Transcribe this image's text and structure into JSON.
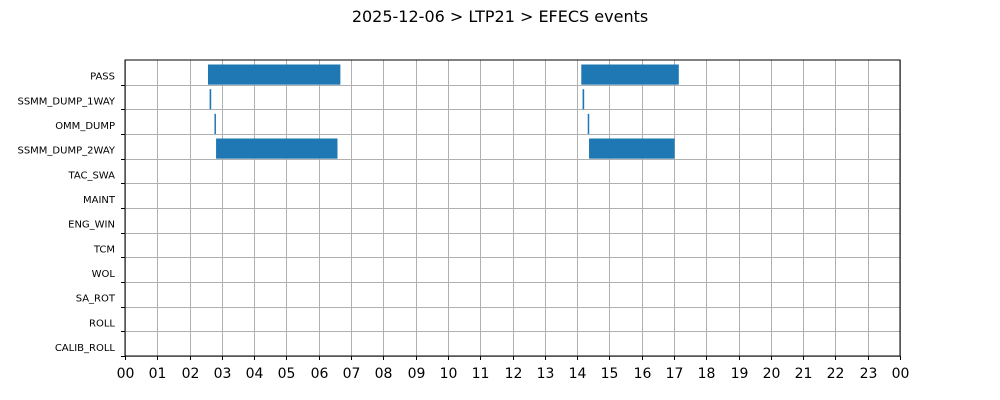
{
  "chart_data": {
    "type": "gantt",
    "title": "2025-12-06 > LTP21 > EFECS events",
    "xlabel": "",
    "ylabel": "",
    "xlim": [
      0,
      24
    ],
    "x_tick_labels": [
      "00",
      "01",
      "02",
      "03",
      "04",
      "05",
      "06",
      "07",
      "08",
      "09",
      "10",
      "11",
      "12",
      "13",
      "14",
      "15",
      "16",
      "17",
      "18",
      "19",
      "20",
      "21",
      "22",
      "23",
      "00"
    ],
    "grid": true,
    "bar_color": "#1f77b4",
    "categories": [
      "PASS",
      "SSMM_DUMP_1WAY",
      "OMM_DUMP",
      "SSMM_DUMP_2WAY",
      "TAC_SWA",
      "MAINT",
      "ENG_WIN",
      "TCM",
      "WOL",
      "SA_ROT",
      "ROLL",
      "CALIB_ROLL"
    ],
    "series": [
      {
        "category": "PASS",
        "intervals": [
          [
            2.57,
            6.67
          ],
          [
            14.13,
            17.15
          ]
        ]
      },
      {
        "category": "SSMM_DUMP_1WAY",
        "intervals": [
          [
            2.62,
            2.67
          ],
          [
            14.17,
            14.22
          ]
        ]
      },
      {
        "category": "OMM_DUMP",
        "intervals": [
          [
            2.77,
            2.8
          ],
          [
            14.33,
            14.37
          ]
        ]
      },
      {
        "category": "SSMM_DUMP_2WAY",
        "intervals": [
          [
            2.82,
            6.58
          ],
          [
            14.37,
            17.02
          ]
        ]
      },
      {
        "category": "TAC_SWA",
        "intervals": []
      },
      {
        "category": "MAINT",
        "intervals": []
      },
      {
        "category": "ENG_WIN",
        "intervals": []
      },
      {
        "category": "TCM",
        "intervals": []
      },
      {
        "category": "WOL",
        "intervals": []
      },
      {
        "category": "SA_ROT",
        "intervals": []
      },
      {
        "category": "ROLL",
        "intervals": []
      },
      {
        "category": "CALIB_ROLL",
        "intervals": []
      }
    ]
  }
}
